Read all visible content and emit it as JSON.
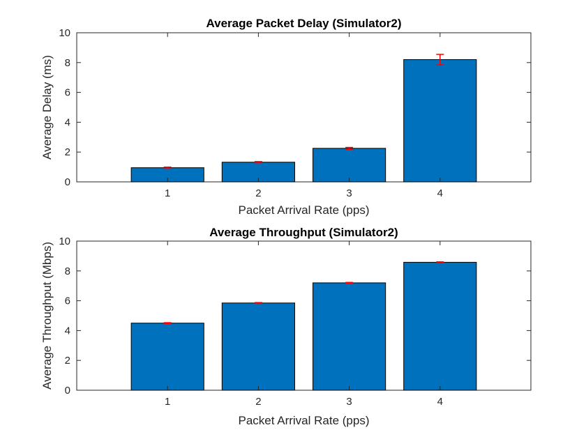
{
  "chart_data": [
    {
      "type": "bar",
      "title": "Average Packet Delay (Simulator2)",
      "xlabel": "Packet Arrival Rate (pps)",
      "ylabel": "Average Delay (ms)",
      "categories": [
        "1",
        "2",
        "3",
        "4"
      ],
      "values": [
        0.95,
        1.32,
        2.25,
        8.2
      ],
      "errors": [
        0.04,
        0.04,
        0.06,
        0.35
      ],
      "ylim": [
        0,
        10
      ],
      "yticks": [
        0,
        2,
        4,
        6,
        8,
        10
      ],
      "grid": false,
      "bar_color": "#0072BD",
      "error_color": "#FF0000"
    },
    {
      "type": "bar",
      "title": "Average Throughput (Simulator2)",
      "xlabel": "Packet Arrival Rate (pps)",
      "ylabel": "Average Throughput (Mbps)",
      "categories": [
        "1",
        "2",
        "3",
        "4"
      ],
      "values": [
        4.5,
        5.85,
        7.2,
        8.58
      ],
      "errors": [
        0.03,
        0.03,
        0.03,
        0.03
      ],
      "ylim": [
        0,
        10
      ],
      "yticks": [
        0,
        2,
        4,
        6,
        8,
        10
      ],
      "grid": false,
      "bar_color": "#0072BD",
      "error_color": "#FF0000"
    }
  ]
}
